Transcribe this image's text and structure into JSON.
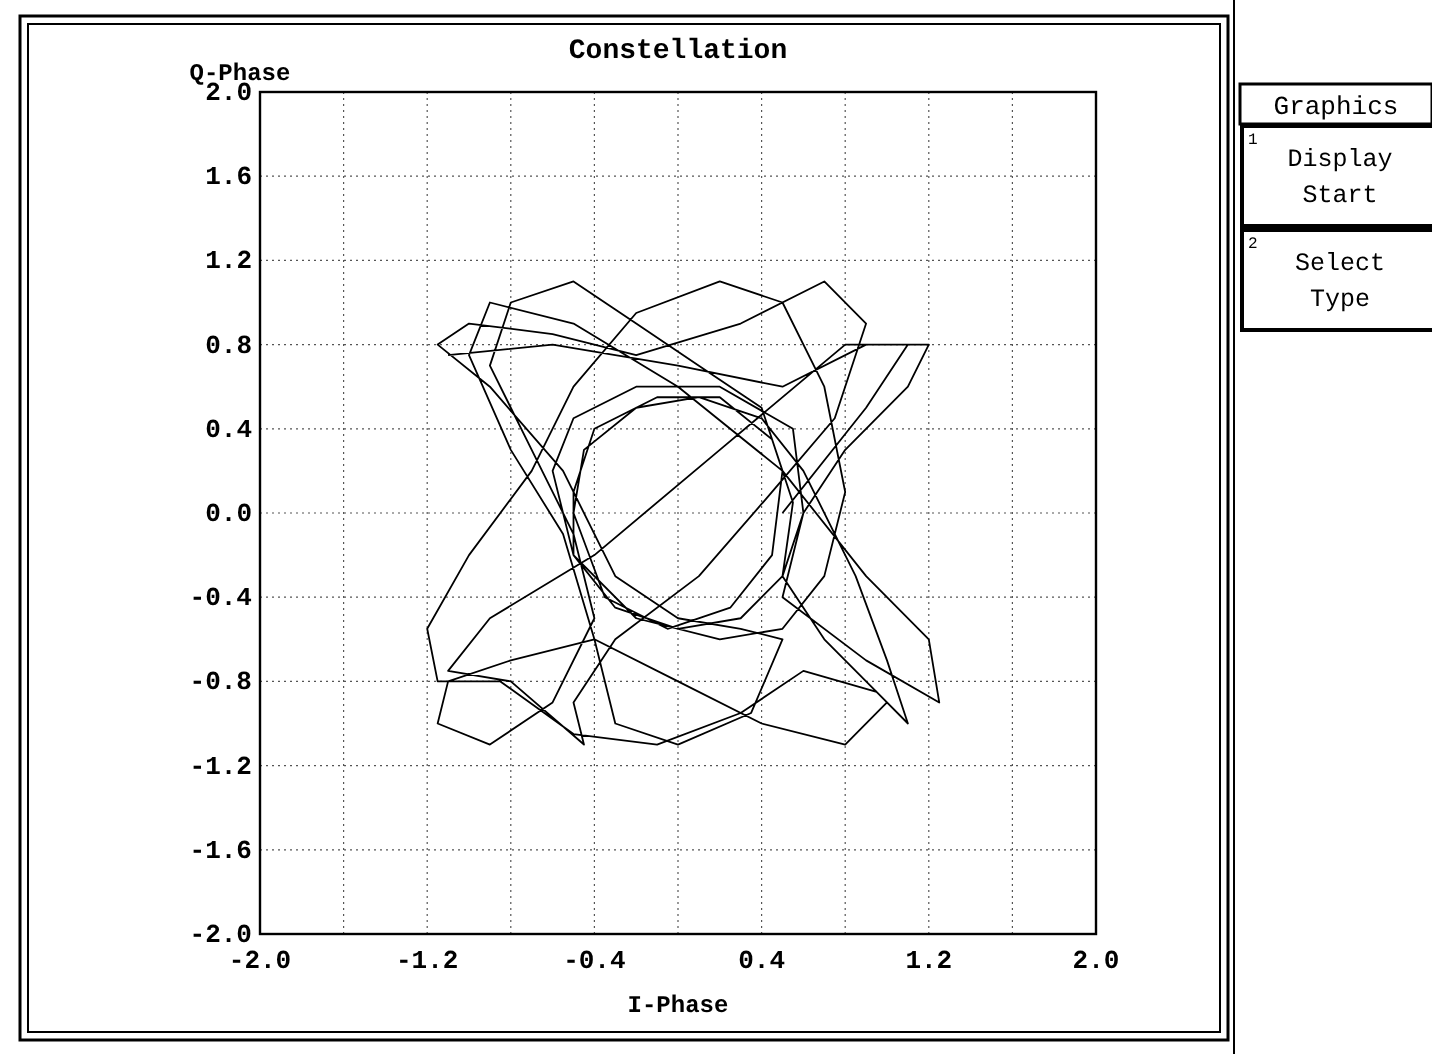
{
  "chart_data": {
    "type": "line",
    "title": "Constellation",
    "xlabel": "I-Phase",
    "ylabel": "Q-Phase",
    "xlim": [
      -2.0,
      2.0
    ],
    "ylim": [
      -2.0,
      2.0
    ],
    "xticks": [
      {
        "value": -2.0,
        "label": "-2.0"
      },
      {
        "value": -1.6,
        "label": null
      },
      {
        "value": -1.2,
        "label": "-1.2"
      },
      {
        "value": -0.8,
        "label": null
      },
      {
        "value": -0.4,
        "label": "-0.4"
      },
      {
        "value": 0,
        "label": null
      },
      {
        "value": 0.4,
        "label": "0.4"
      },
      {
        "value": 0.8,
        "label": null
      },
      {
        "value": 1.2,
        "label": "1.2"
      },
      {
        "value": 1.6,
        "label": null
      },
      {
        "value": 2.0,
        "label": "2.0"
      }
    ],
    "yticks": [
      {
        "value": 2.0,
        "label": "2.0"
      },
      {
        "value": 1.6,
        "label": "1.6"
      },
      {
        "value": 1.2,
        "label": "1.2"
      },
      {
        "value": 0.8,
        "label": "0.8"
      },
      {
        "value": 0.4,
        "label": "0.4"
      },
      {
        "value": 0,
        "label": "0.0"
      },
      {
        "value": -0.4,
        "label": "-0.4"
      },
      {
        "value": -0.8,
        "label": "-0.8"
      },
      {
        "value": -1.2,
        "label": "-1.2"
      },
      {
        "value": -1.6,
        "label": "-1.6"
      },
      {
        "value": -2.0,
        "label": "-2.0"
      }
    ],
    "grid": true,
    "annotations": [
      "Graphics",
      "1",
      "Display Start",
      "2",
      "Select Type"
    ],
    "series": [
      {
        "color": "#000000",
        "x": [
          -1.1,
          -0.6,
          0.0,
          0.5,
          0.9,
          1.2,
          1.1,
          0.8,
          0.6,
          0.5,
          0.3,
          0.0,
          -0.3,
          -0.5,
          -0.5,
          -0.4,
          -0.1,
          0.2,
          0.45,
          0.55,
          0.5,
          0.7,
          1.0,
          0.8,
          0.4,
          0.0,
          -0.4,
          -0.8,
          -1.1,
          -1.15,
          -0.9,
          -0.6,
          -0.4,
          -0.5,
          -0.7,
          -0.9,
          -0.8,
          -0.5,
          -0.2,
          0.1,
          0.4,
          0.5,
          0.45,
          0.25,
          -0.05,
          -0.35,
          -0.5,
          -0.45,
          -0.2,
          0.1,
          0.4,
          0.6,
          0.85,
          1.0,
          1.1,
          0.95,
          0.6,
          0.3,
          -0.1,
          -0.5,
          -0.85,
          -1.15,
          -1.2,
          -1.0,
          -0.7,
          -0.5,
          -0.2,
          0.2,
          0.5,
          0.7,
          0.8,
          0.7,
          0.5,
          0.2,
          -0.2,
          -0.5,
          -0.6,
          -0.5,
          -0.2,
          0.2,
          0.55,
          0.6,
          0.5,
          0.9,
          1.25,
          1.2,
          0.9,
          0.5,
          0.0,
          -0.5,
          -0.9,
          -1.0,
          -0.8,
          -0.55,
          -0.4,
          -0.3,
          0.0,
          0.35,
          0.5,
          0.3,
          0.0,
          -0.3,
          -0.55,
          -0.9,
          -1.15,
          -1.0,
          -0.6,
          -0.2,
          0.3,
          0.7,
          0.9,
          0.75,
          0.45,
          0.1,
          -0.3,
          -0.5,
          -0.45,
          -0.8,
          -1.1,
          -0.9,
          -0.4,
          0.2,
          0.8,
          1.1,
          0.9,
          0.5
        ],
        "values": [
          0.75,
          0.8,
          0.7,
          0.6,
          0.8,
          0.8,
          0.6,
          0.3,
          0.0,
          -0.3,
          -0.5,
          -0.55,
          -0.45,
          -0.2,
          0.1,
          0.4,
          0.55,
          0.55,
          0.35,
          0.05,
          -0.3,
          -0.6,
          -0.9,
          -1.1,
          -1.0,
          -0.8,
          -0.6,
          -0.7,
          -0.8,
          -1.0,
          -1.1,
          -0.9,
          -0.5,
          -0.1,
          0.3,
          0.7,
          1.0,
          1.1,
          0.9,
          0.7,
          0.5,
          0.2,
          -0.2,
          -0.45,
          -0.55,
          -0.4,
          0.0,
          0.3,
          0.5,
          0.55,
          0.45,
          0.2,
          -0.3,
          -0.7,
          -1.0,
          -0.85,
          -0.75,
          -0.95,
          -1.1,
          -1.05,
          -0.8,
          -0.8,
          -0.55,
          -0.2,
          0.2,
          0.6,
          0.95,
          1.1,
          1.0,
          0.6,
          0.1,
          -0.3,
          -0.55,
          -0.6,
          -0.5,
          -0.2,
          0.2,
          0.45,
          0.6,
          0.6,
          0.4,
          0.0,
          -0.4,
          -0.7,
          -0.9,
          -0.6,
          -0.3,
          0.2,
          0.6,
          0.9,
          1.0,
          0.75,
          0.3,
          -0.1,
          -0.6,
          -1.0,
          -1.1,
          -0.95,
          -0.6,
          -0.55,
          -0.5,
          -0.3,
          0.2,
          0.6,
          0.8,
          0.9,
          0.85,
          0.75,
          0.9,
          1.1,
          0.9,
          0.45,
          0.1,
          -0.3,
          -0.6,
          -0.9,
          -1.1,
          -0.8,
          -0.75,
          -0.5,
          -0.2,
          0.3,
          0.8,
          0.8,
          0.5,
          0.0
        ]
      }
    ]
  }
}
